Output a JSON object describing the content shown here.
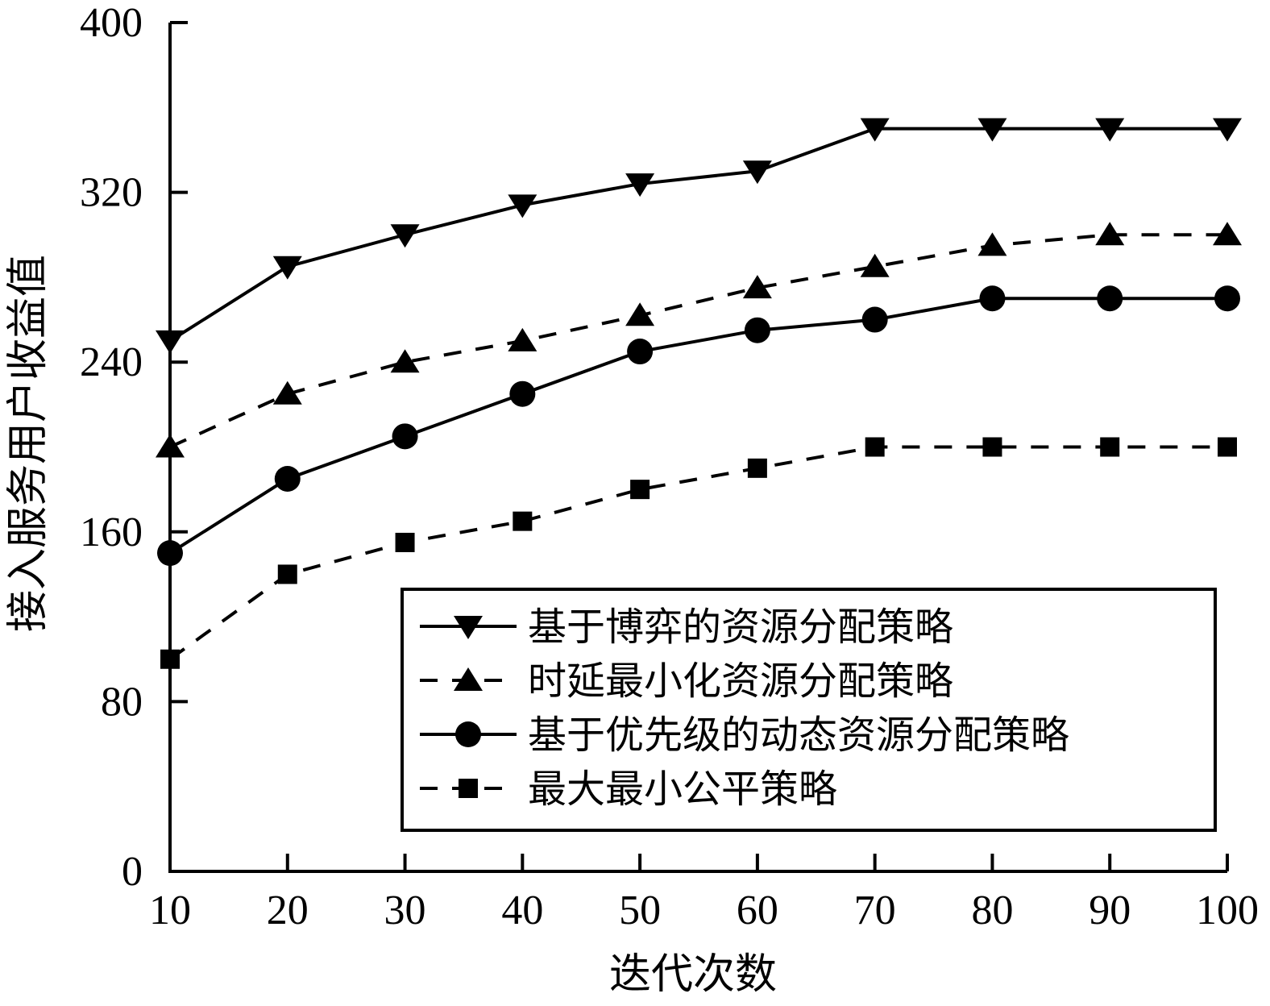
{
  "chart_data": {
    "type": "line",
    "xlabel": "迭代次数",
    "ylabel": "接入服务用户收益值",
    "xlim": [
      10,
      100
    ],
    "ylim": [
      0,
      400
    ],
    "x_ticks": [
      10,
      20,
      30,
      40,
      50,
      60,
      70,
      80,
      90,
      100
    ],
    "y_ticks": [
      0,
      80,
      160,
      240,
      320,
      400
    ],
    "x": [
      10,
      20,
      30,
      40,
      50,
      60,
      70,
      80,
      90,
      100
    ],
    "grid": false,
    "legend_position": "bottom-right",
    "series": [
      {
        "name": "基于博弈的资源分配策略",
        "marker": "triangle-down",
        "dash": "solid",
        "values": [
          250,
          285,
          300,
          314,
          324,
          330,
          350,
          350,
          350,
          350
        ]
      },
      {
        "name": "时延最小化资源分配策略",
        "marker": "triangle-up",
        "dash": "dashed",
        "values": [
          200,
          225,
          240,
          250,
          262,
          275,
          285,
          295,
          300,
          300
        ]
      },
      {
        "name": "基于优先级的动态资源分配策略",
        "marker": "circle",
        "dash": "solid",
        "values": [
          150,
          185,
          205,
          225,
          245,
          255,
          260,
          270,
          270,
          270
        ]
      },
      {
        "name": "最大最小公平策略",
        "marker": "square",
        "dash": "dashed",
        "values": [
          100,
          140,
          155,
          165,
          180,
          190,
          200,
          200,
          200,
          200
        ]
      }
    ]
  }
}
